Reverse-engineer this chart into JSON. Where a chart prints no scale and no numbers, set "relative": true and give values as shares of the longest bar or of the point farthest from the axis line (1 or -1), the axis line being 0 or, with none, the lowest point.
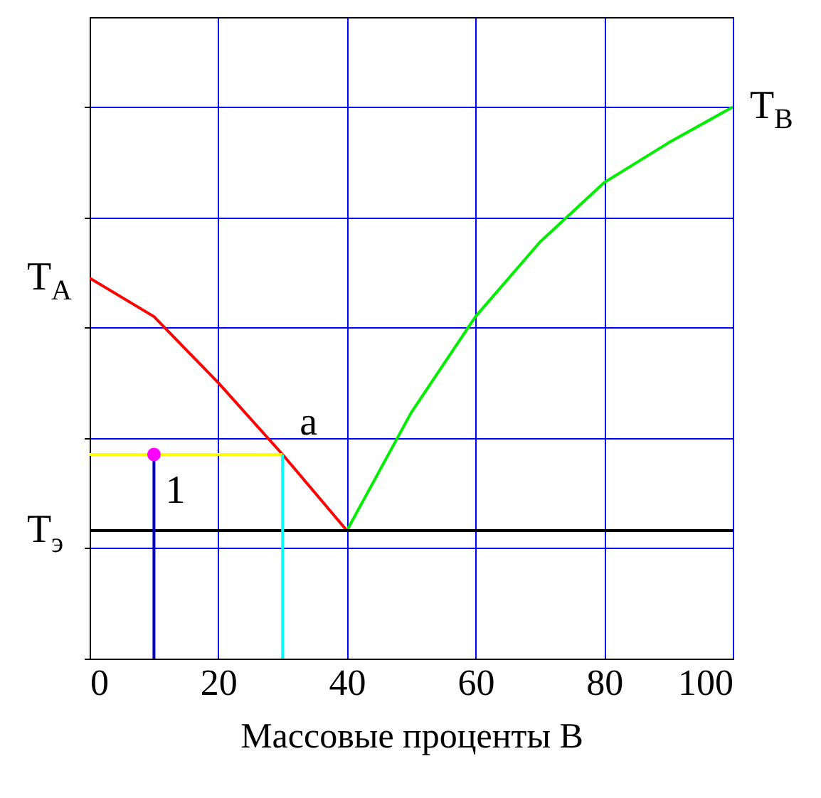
{
  "chart_data": {
    "type": "line",
    "relative": true,
    "xlabel": "Массовые проценты В",
    "xlim": [
      0,
      100
    ],
    "xticks": [
      0,
      20,
      40,
      60,
      80,
      100
    ],
    "grid": true,
    "tick_labels": "x",
    "series": [
      {
        "color": "#ff0000",
        "x": [
          0,
          10,
          20,
          30,
          40
        ],
        "values": [
          0.69,
          0.62,
          0.5,
          0.37,
          0.232
        ]
      },
      {
        "color": "#00ee00",
        "x": [
          40,
          50,
          60,
          70,
          80,
          90,
          100
        ],
        "values": [
          0.232,
          0.446,
          0.62,
          0.755,
          0.863,
          0.935,
          1
        ]
      },
      {
        "color": "#000000",
        "x": [
          0,
          100
        ],
        "values": [
          0.232,
          0.232
        ]
      },
      {
        "color": "#ffff00",
        "x": [
          0,
          30
        ],
        "values": [
          0.37,
          0.37
        ]
      },
      {
        "color": "#0000c0",
        "x": [
          10,
          10
        ],
        "values": [
          0,
          0.37
        ]
      },
      {
        "color": "#00ffff",
        "x": [
          30,
          30
        ],
        "values": [
          0,
          0.37
        ]
      },
      {
        "type": "scatter",
        "color": "#ff00ff",
        "x": [
          10
        ],
        "values": [
          0.37
        ]
      }
    ],
    "annotations": [
      {
        "text": "T$_{A}$",
        "x": 0,
        "y": 0.69
      },
      {
        "text": "T$_{B}$",
        "x": 100,
        "y": 1
      },
      {
        "text": "T$_{э}$",
        "x": 0,
        "y": 0.232
      },
      {
        "text": "a",
        "x": 30,
        "y": 0.37
      },
      {
        "text": "1",
        "x": 10,
        "y": 0.37
      }
    ]
  }
}
